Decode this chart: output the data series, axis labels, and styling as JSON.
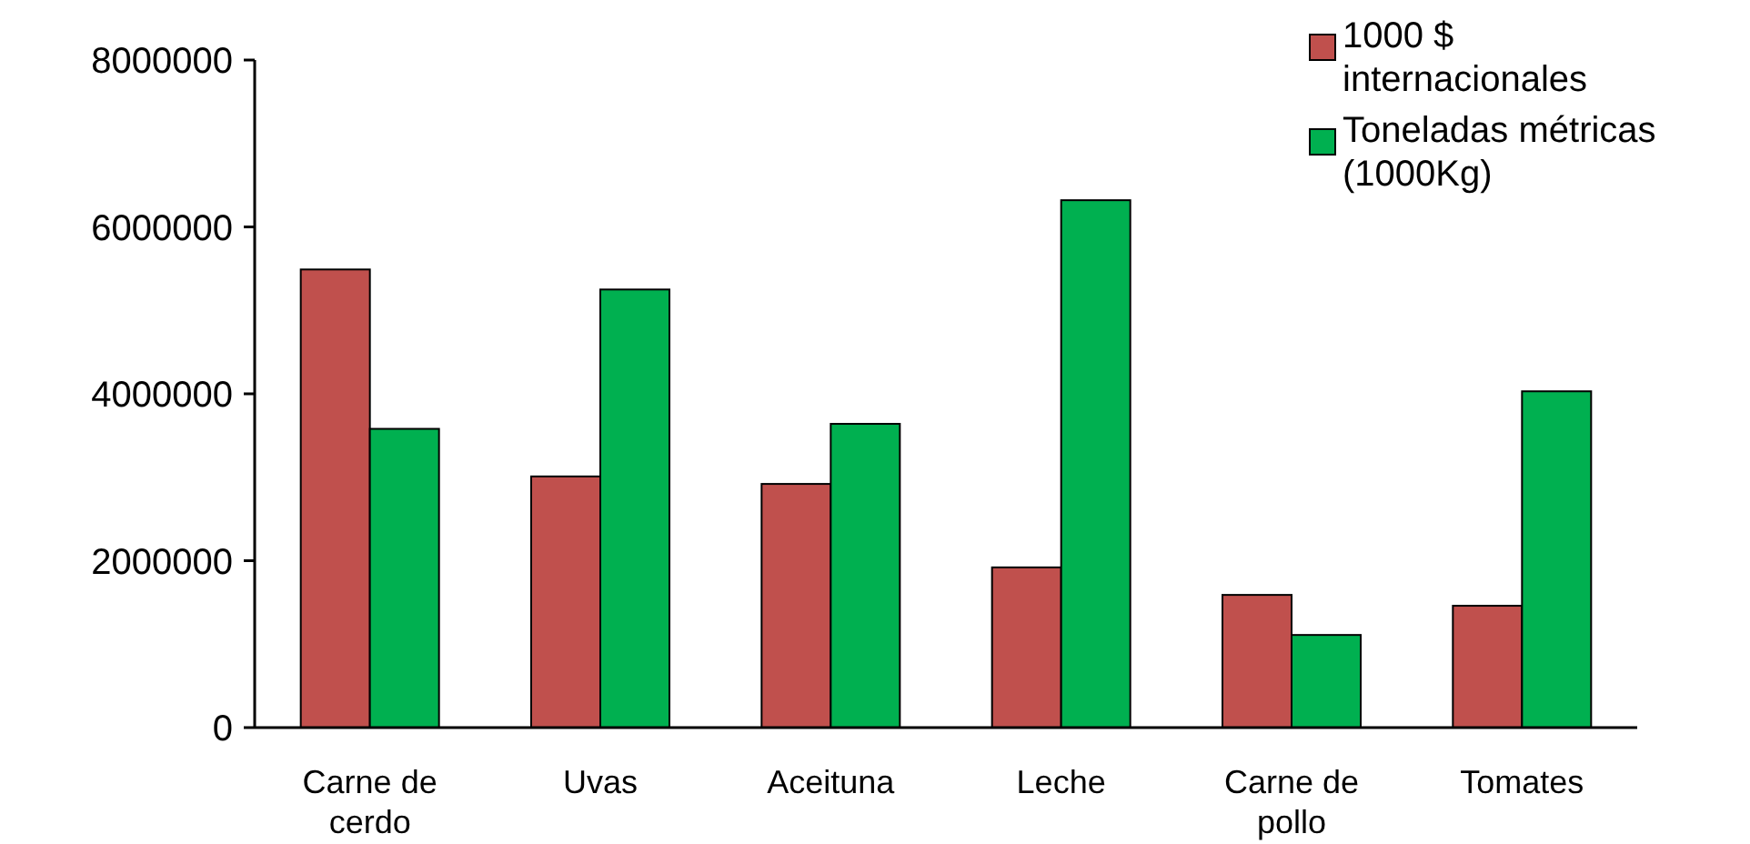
{
  "chart_data": {
    "type": "bar",
    "categories": [
      "Carne de cerdo",
      "Uvas",
      "Aceituna",
      "Leche",
      "Carne de pollo",
      "Tomates"
    ],
    "series": [
      {
        "name": "1000 $ internacionales",
        "color": "#c0504d",
        "values": [
          5490000,
          3010000,
          2920000,
          1920000,
          1590000,
          1460000
        ]
      },
      {
        "name": "Toneladas métricas (1000Kg)",
        "color": "#00b050",
        "values": [
          3580000,
          5250000,
          3640000,
          6320000,
          1110000,
          4030000
        ]
      }
    ],
    "ylim": [
      0,
      8000000
    ],
    "yticks": [
      0,
      2000000,
      4000000,
      6000000,
      8000000
    ],
    "grid": false,
    "legend": "top right"
  }
}
